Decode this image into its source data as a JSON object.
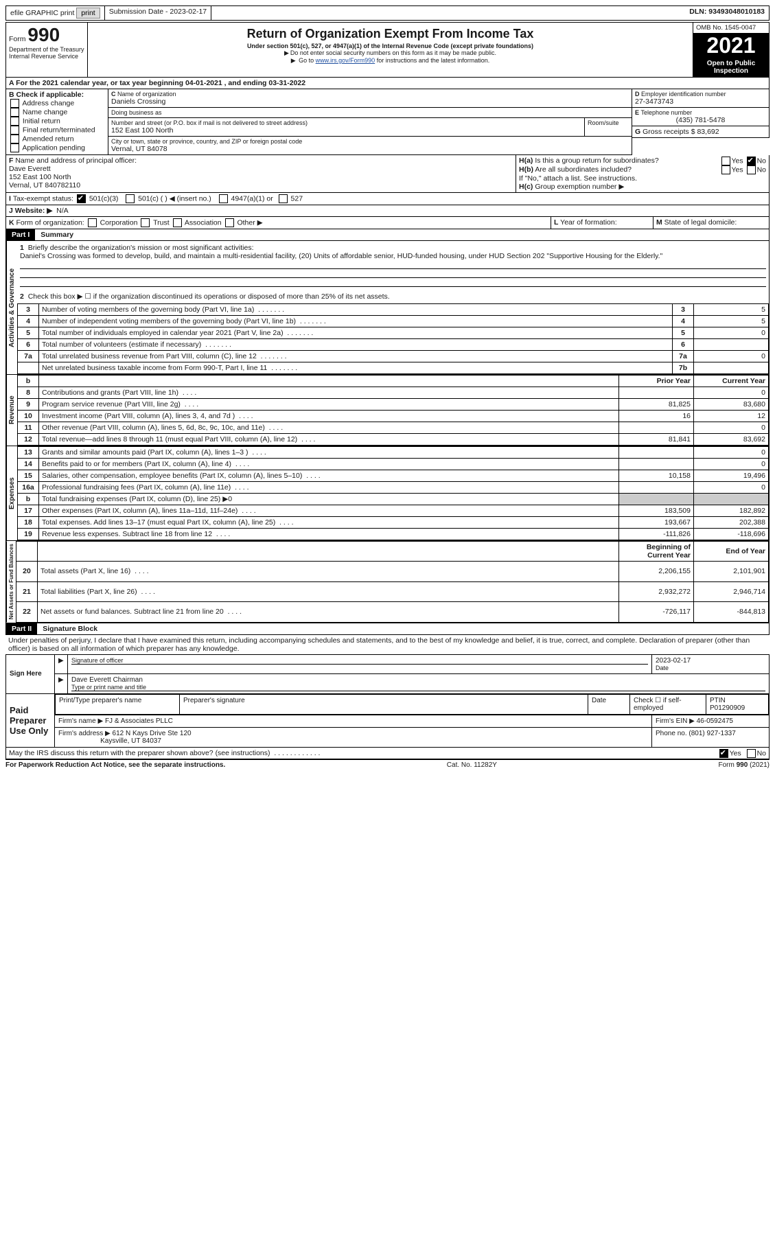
{
  "topbar": {
    "efile": "efile GRAPHIC print",
    "submission": "Submission Date - 2023-02-17",
    "dln": "DLN: 93493048010183"
  },
  "header": {
    "form_label": "Form",
    "form_number": "990",
    "title": "Return of Organization Exempt From Income Tax",
    "subtitle": "Under section 501(c), 527, or 4947(a)(1) of the Internal Revenue Code (except private foundations)",
    "note1": "Do not enter social security numbers on this form as it may be made public.",
    "note2_prefix": "Go to ",
    "note2_link": "www.irs.gov/Form990",
    "note2_suffix": " for instructions and the latest information.",
    "omb": "OMB No. 1545-0047",
    "year": "2021",
    "open": "Open to Public Inspection",
    "dept": "Department of the Treasury Internal Revenue Service"
  },
  "A": {
    "text": "For the 2021 calendar year, or tax year beginning 04-01-2021   , and ending 03-31-2022"
  },
  "B": {
    "label": "Check if applicable:",
    "opts": [
      "Address change",
      "Name change",
      "Initial return",
      "Final return/terminated",
      "Amended return",
      "Application pending"
    ]
  },
  "C": {
    "name_label": "Name of organization",
    "name": "Daniels Crossing",
    "dba_label": "Doing business as",
    "street_label": "Number and street (or P.O. box if mail is not delivered to street address)",
    "room_label": "Room/suite",
    "street": "152 East 100 North",
    "city_label": "City or town, state or province, country, and ZIP or foreign postal code",
    "city": "Vernal, UT  84078"
  },
  "D": {
    "label": "Employer identification number",
    "value": "27-3473743"
  },
  "E": {
    "label": "Telephone number",
    "value": "(435) 781-5478"
  },
  "G": {
    "label": "Gross receipts $",
    "value": "83,692"
  },
  "F": {
    "label": "Name and address of principal officer:",
    "name": "Dave Everett",
    "street": "152 East 100 North",
    "city": "Vernal, UT  840782110"
  },
  "H": {
    "a": "Is this a group return for subordinates?",
    "b": "Are all subordinates included?",
    "note": "If \"No,\" attach a list. See instructions.",
    "c": "Group exemption number ▶",
    "yes": "Yes",
    "no": "No"
  },
  "I": {
    "label": "Tax-exempt status:",
    "opt1": "501(c)(3)",
    "opt2": "501(c) (  ) ◀ (insert no.)",
    "opt3": "4947(a)(1) or",
    "opt4": "527"
  },
  "J": {
    "label": "Website: ▶",
    "value": "N/A"
  },
  "K": {
    "label": "Form of organization:",
    "opts": [
      "Corporation",
      "Trust",
      "Association",
      "Other ▶"
    ]
  },
  "L": {
    "label": "Year of formation:"
  },
  "M": {
    "label": "State of legal domicile:"
  },
  "part1": {
    "header": "Part I",
    "title": "Summary",
    "q1_label": "Briefly describe the organization's mission or most significant activities:",
    "q1_text": "Daniel's Crossing was formed to develop, build, and maintain a multi-residential facility, (20) Units of affordable senior, HUD-funded housing, under HUD Section 202 \"Supportive Housing for the Elderly.\"",
    "q2": "Check this box ▶ ☐  if the organization discontinued its operations or disposed of more than 25% of its net assets.",
    "lines": [
      {
        "n": "3",
        "t": "Number of voting members of the governing body (Part VI, line 1a)",
        "box": "3",
        "v": "5"
      },
      {
        "n": "4",
        "t": "Number of independent voting members of the governing body (Part VI, line 1b)",
        "box": "4",
        "v": "5"
      },
      {
        "n": "5",
        "t": "Total number of individuals employed in calendar year 2021 (Part V, line 2a)",
        "box": "5",
        "v": "0"
      },
      {
        "n": "6",
        "t": "Total number of volunteers (estimate if necessary)",
        "box": "6",
        "v": ""
      },
      {
        "n": "7a",
        "t": "Total unrelated business revenue from Part VIII, column (C), line 12",
        "box": "7a",
        "v": "0"
      },
      {
        "n": "",
        "t": "Net unrelated business taxable income from Form 990-T, Part I, line 11",
        "box": "7b",
        "v": ""
      }
    ],
    "col_prior": "Prior Year",
    "col_current": "Current Year",
    "revenue": [
      {
        "n": "8",
        "t": "Contributions and grants (Part VIII, line 1h)",
        "p": "",
        "c": "0"
      },
      {
        "n": "9",
        "t": "Program service revenue (Part VIII, line 2g)",
        "p": "81,825",
        "c": "83,680"
      },
      {
        "n": "10",
        "t": "Investment income (Part VIII, column (A), lines 3, 4, and 7d )",
        "p": "16",
        "c": "12"
      },
      {
        "n": "11",
        "t": "Other revenue (Part VIII, column (A), lines 5, 6d, 8c, 9c, 10c, and 11e)",
        "p": "",
        "c": "0"
      },
      {
        "n": "12",
        "t": "Total revenue—add lines 8 through 11 (must equal Part VIII, column (A), line 12)",
        "p": "81,841",
        "c": "83,692"
      }
    ],
    "expenses": [
      {
        "n": "13",
        "t": "Grants and similar amounts paid (Part IX, column (A), lines 1–3 )",
        "p": "",
        "c": "0"
      },
      {
        "n": "14",
        "t": "Benefits paid to or for members (Part IX, column (A), line 4)",
        "p": "",
        "c": "0"
      },
      {
        "n": "15",
        "t": "Salaries, other compensation, employee benefits (Part IX, column (A), lines 5–10)",
        "p": "10,158",
        "c": "19,496"
      },
      {
        "n": "16a",
        "t": "Professional fundraising fees (Part IX, column (A), line 11e)",
        "p": "",
        "c": "0"
      },
      {
        "n": "b",
        "t": "Total fundraising expenses (Part IX, column (D), line 25) ▶0",
        "p": "—",
        "c": "—"
      },
      {
        "n": "17",
        "t": "Other expenses (Part IX, column (A), lines 11a–11d, 11f–24e)",
        "p": "183,509",
        "c": "182,892"
      },
      {
        "n": "18",
        "t": "Total expenses. Add lines 13–17 (must equal Part IX, column (A), line 25)",
        "p": "193,667",
        "c": "202,388"
      },
      {
        "n": "19",
        "t": "Revenue less expenses. Subtract line 18 from line 12",
        "p": "-111,826",
        "c": "-118,696"
      }
    ],
    "col_begin": "Beginning of Current Year",
    "col_end": "End of Year",
    "netassets": [
      {
        "n": "20",
        "t": "Total assets (Part X, line 16)",
        "p": "2,206,155",
        "c": "2,101,901"
      },
      {
        "n": "21",
        "t": "Total liabilities (Part X, line 26)",
        "p": "2,932,272",
        "c": "2,946,714"
      },
      {
        "n": "22",
        "t": "Net assets or fund balances. Subtract line 21 from line 20",
        "p": "-726,117",
        "c": "-844,813"
      }
    ],
    "vlabels": {
      "gov": "Activities & Governance",
      "rev": "Revenue",
      "exp": "Expenses",
      "net": "Net Assets or Fund Balances"
    }
  },
  "part2": {
    "header": "Part II",
    "title": "Signature Block",
    "declaration": "Under penalties of perjury, I declare that I have examined this return, including accompanying schedules and statements, and to the best of my knowledge and belief, it is true, correct, and complete. Declaration of preparer (other than officer) is based on all information of which preparer has any knowledge.",
    "sign_here": "Sign Here",
    "sig_officer": "Signature of officer",
    "sig_date": "2023-02-17",
    "date_label": "Date",
    "name_title": "Dave Everett Chairman",
    "name_title_label": "Type or print name and title",
    "paid": "Paid Preparer Use Only",
    "prep_name_label": "Print/Type preparer's name",
    "prep_sig_label": "Preparer's signature",
    "check_self": "Check ☐ if self-employed",
    "ptin_label": "PTIN",
    "ptin": "P01290909",
    "firm_name_label": "Firm's name    ▶",
    "firm_name": "FJ & Associates PLLC",
    "firm_ein_label": "Firm's EIN ▶",
    "firm_ein": "46-0592475",
    "firm_addr_label": "Firm's address ▶",
    "firm_addr1": "612 N Kays Drive Ste 120",
    "firm_addr2": "Kaysville, UT  84037",
    "phone_label": "Phone no.",
    "phone": "(801) 927-1337",
    "may_irs": "May the IRS discuss this return with the preparer shown above? (see instructions)",
    "yes": "Yes",
    "no": "No"
  },
  "footer": {
    "paperwork": "For Paperwork Reduction Act Notice, see the separate instructions.",
    "cat": "Cat. No. 11282Y",
    "form": "Form 990 (2021)"
  }
}
